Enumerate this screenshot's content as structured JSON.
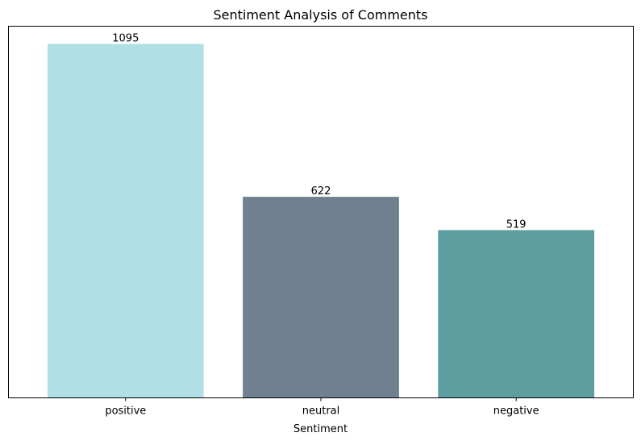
{
  "chart_data": {
    "type": "bar",
    "title": "Sentiment Analysis of Comments",
    "xlabel": "Sentiment",
    "ylabel": "",
    "categories": [
      "positive",
      "neutral",
      "negative"
    ],
    "values": [
      1095,
      622,
      519
    ],
    "value_labels": [
      "1095",
      "622",
      "519"
    ],
    "colors": [
      "#b0e0e6",
      "#708090",
      "#5f9ea0"
    ],
    "ylim": [
      0,
      1149.75
    ],
    "grid": false,
    "y_ticks_visible": false
  }
}
